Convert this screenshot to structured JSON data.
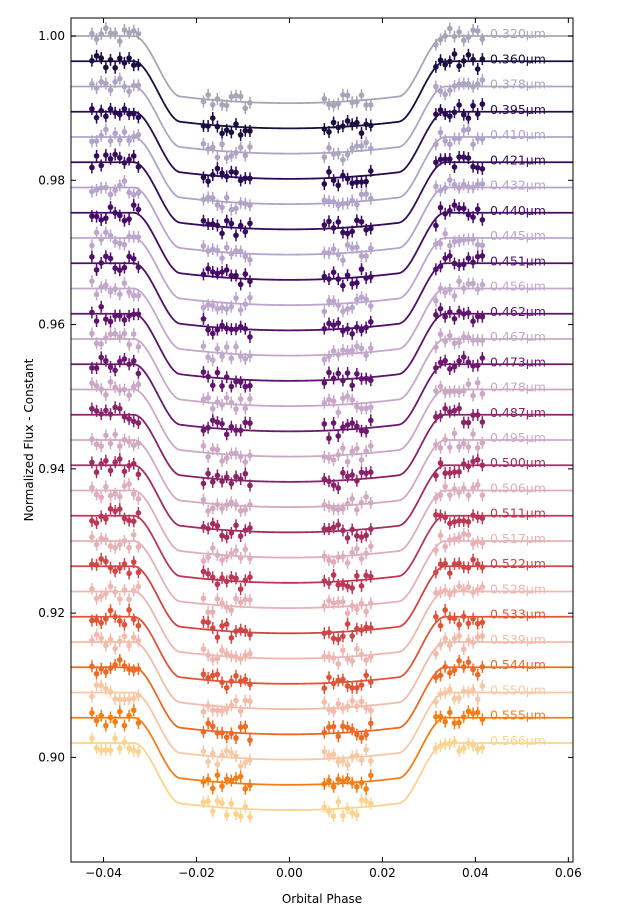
{
  "chart_data": {
    "type": "line",
    "title": "",
    "xlabel": "Orbital Phase",
    "ylabel": "Normalized Flux - Constant",
    "xlim": [
      -0.047,
      0.061
    ],
    "ylim": [
      0.8855,
      1.0025
    ],
    "x_ticks": [
      -0.04,
      -0.02,
      0.0,
      0.02,
      0.04,
      0.06
    ],
    "x_tick_labels": [
      "−0.04",
      "−0.02",
      "0.00",
      "0.02",
      "0.04",
      "0.06"
    ],
    "y_ticks": [
      0.9,
      0.92,
      0.94,
      0.96,
      0.98,
      1.0
    ],
    "y_tick_labels": [
      "0.90",
      "0.92",
      "0.94",
      "0.96",
      "0.98",
      "1.00"
    ],
    "grid": false,
    "transit_model": {
      "transit_depth": 0.0093,
      "contact_1_phase": 0.0335,
      "contact_2_phase": 0.0235,
      "data_phase_windows": [
        [
          -0.0425,
          -0.0325
        ],
        [
          -0.0185,
          -0.0085
        ],
        [
          0.0075,
          0.0175
        ],
        [
          0.0315,
          0.0415
        ]
      ]
    },
    "series": [
      {
        "label": "0.320μm",
        "baseline": 1.0,
        "color": "#a9a5b8"
      },
      {
        "label": "0.360μm",
        "baseline": 0.9965,
        "color": "#1b0c41"
      },
      {
        "label": "0.378μm",
        "baseline": 0.993,
        "color": "#aea5c4"
      },
      {
        "label": "0.395μm",
        "baseline": 0.9895,
        "color": "#280b54"
      },
      {
        "label": "0.410μm",
        "baseline": 0.986,
        "color": "#b0a4c9"
      },
      {
        "label": "0.421μm",
        "baseline": 0.9825,
        "color": "#360a5f"
      },
      {
        "label": "0.432μm",
        "baseline": 0.979,
        "color": "#b6a4cc"
      },
      {
        "label": "0.440μm",
        "baseline": 0.9755,
        "color": "#450a69"
      },
      {
        "label": "0.445μm",
        "baseline": 0.972,
        "color": "#bca6cf"
      },
      {
        "label": "0.451μm",
        "baseline": 0.9685,
        "color": "#520e6d"
      },
      {
        "label": "0.456μm",
        "baseline": 0.965,
        "color": "#c1a8cc"
      },
      {
        "label": "0.462μm",
        "baseline": 0.9615,
        "color": "#5f136e"
      },
      {
        "label": "0.467μm",
        "baseline": 0.958,
        "color": "#c7a8c9"
      },
      {
        "label": "0.473μm",
        "baseline": 0.9545,
        "color": "#6d186e"
      },
      {
        "label": "0.478μm",
        "baseline": 0.951,
        "color": "#cda8c5"
      },
      {
        "label": "0.487μm",
        "baseline": 0.9475,
        "color": "#8a226a"
      },
      {
        "label": "0.495μm",
        "baseline": 0.944,
        "color": "#d3a9c2"
      },
      {
        "label": "0.500μm",
        "baseline": 0.9405,
        "color": "#a52c60"
      },
      {
        "label": "0.506μm",
        "baseline": 0.937,
        "color": "#deadbe"
      },
      {
        "label": "0.511μm",
        "baseline": 0.9335,
        "color": "#bb3754"
      },
      {
        "label": "0.517μm",
        "baseline": 0.93,
        "color": "#e7b1b6"
      },
      {
        "label": "0.522μm",
        "baseline": 0.9265,
        "color": "#d04545"
      },
      {
        "label": "0.528μm",
        "baseline": 0.923,
        "color": "#efb6b2"
      },
      {
        "label": "0.533μm",
        "baseline": 0.9195,
        "color": "#e05536"
      },
      {
        "label": "0.539μm",
        "baseline": 0.916,
        "color": "#f3bba9"
      },
      {
        "label": "0.544μm",
        "baseline": 0.9125,
        "color": "#ed6925"
      },
      {
        "label": "0.550μm",
        "baseline": 0.909,
        "color": "#f8c7a4"
      },
      {
        "label": "0.555μm",
        "baseline": 0.9055,
        "color": "#f57d15"
      },
      {
        "label": "0.566μm",
        "baseline": 0.902,
        "color": "#fbd38e"
      }
    ]
  }
}
